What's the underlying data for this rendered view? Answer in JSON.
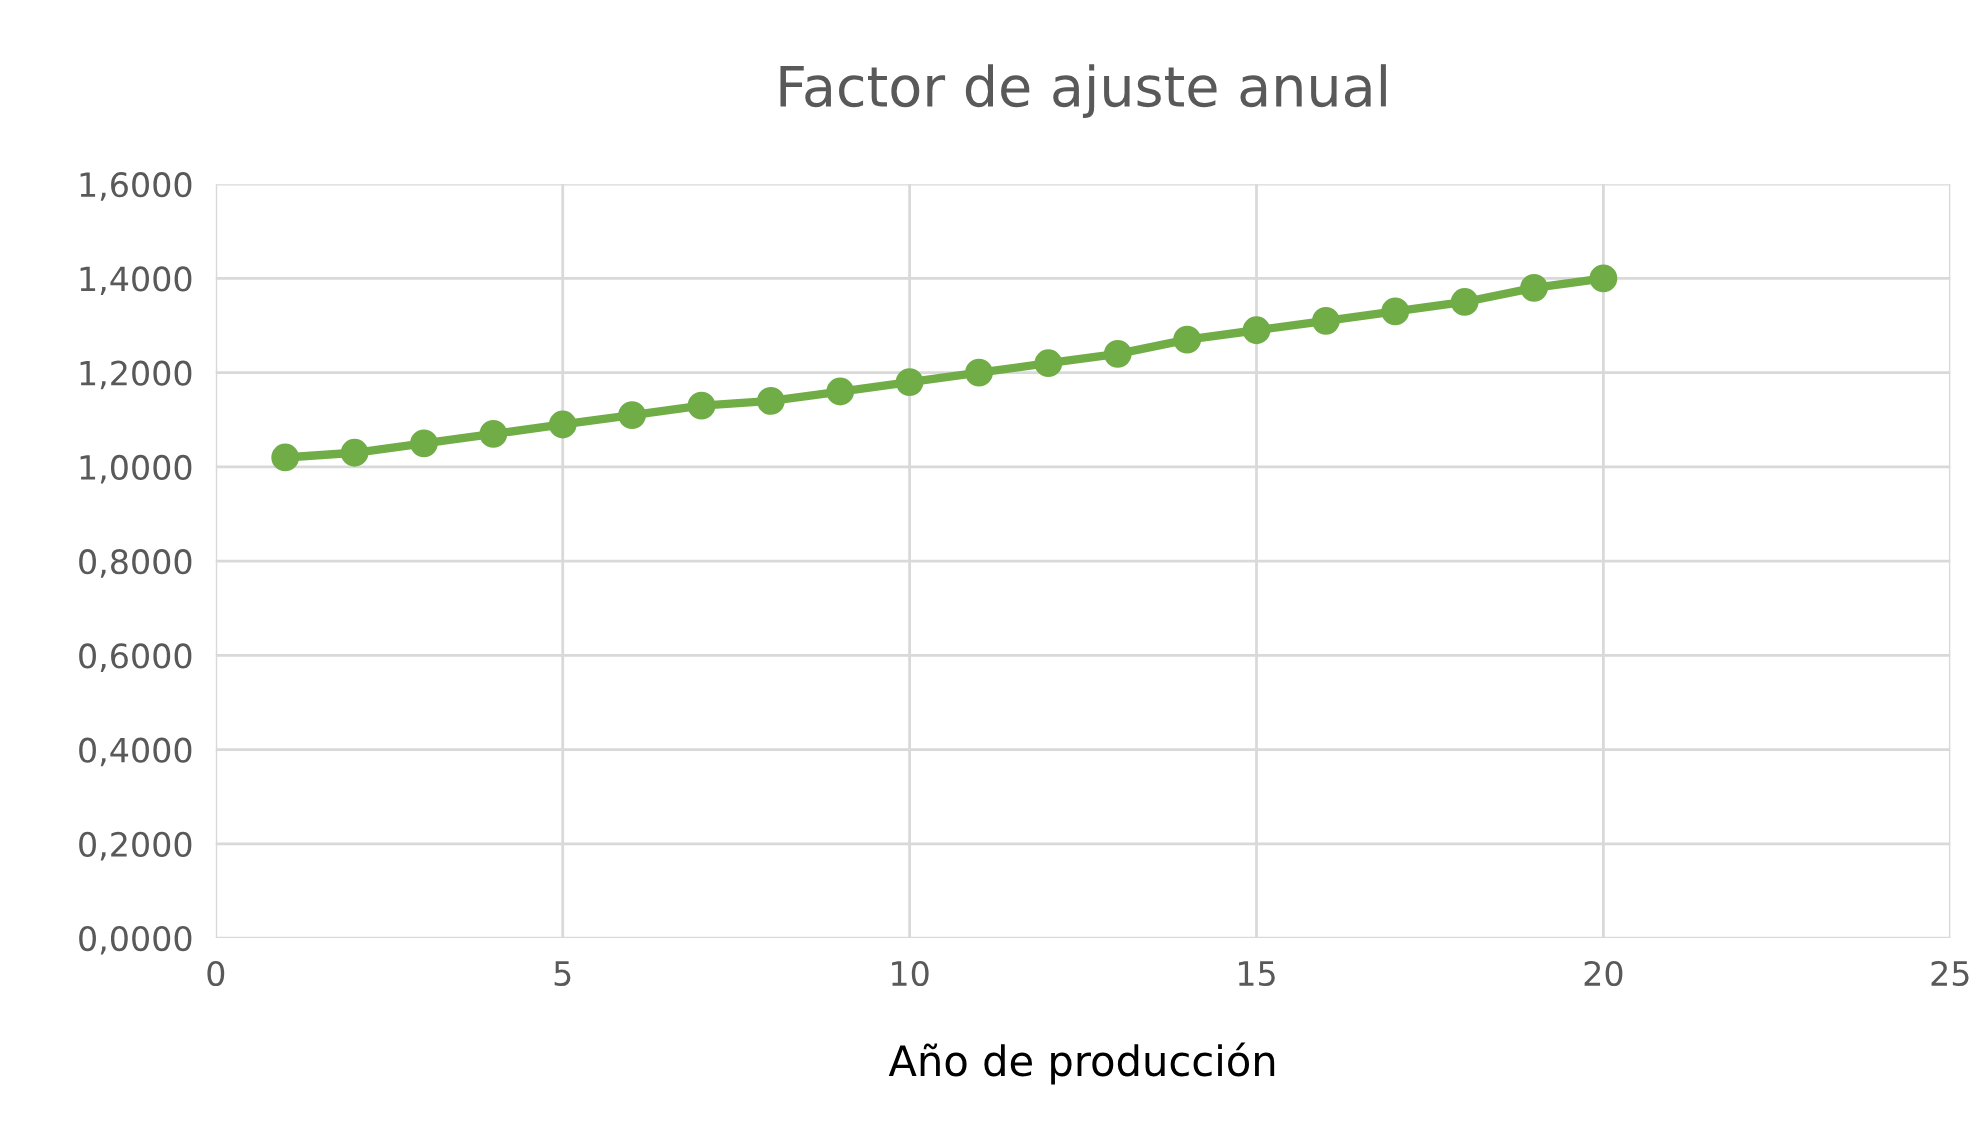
{
  "chart_data": {
    "type": "line",
    "title": "Factor de ajuste anual",
    "xlabel": "Año de producción",
    "x": [
      1,
      2,
      3,
      4,
      5,
      6,
      7,
      8,
      9,
      10,
      11,
      12,
      13,
      14,
      15,
      16,
      17,
      18,
      19,
      20
    ],
    "series": [
      {
        "color": "#70ad47",
        "values": [
          1.02,
          1.03,
          1.05,
          1.07,
          1.09,
          1.11,
          1.13,
          1.14,
          1.16,
          1.18,
          1.2,
          1.22,
          1.24,
          1.27,
          1.29,
          1.31,
          1.33,
          1.35,
          1.38,
          1.4
        ]
      }
    ],
    "xlim": [
      0,
      25
    ],
    "xticks": [
      0,
      5,
      10,
      15,
      20,
      25
    ],
    "ylim": [
      0,
      1.6
    ],
    "yticks": [
      {
        "value": 0,
        "label": "0,0000"
      },
      {
        "value": 0.2,
        "label": "0,2000"
      },
      {
        "value": 0.4,
        "label": "0,4000"
      },
      {
        "value": 0.6,
        "label": "0,6000"
      },
      {
        "value": 0.8,
        "label": "0,8000"
      },
      {
        "value": 1.0,
        "label": "1,0000"
      },
      {
        "value": 1.2,
        "label": "1,2000"
      },
      {
        "value": 1.4,
        "label": "1,4000"
      },
      {
        "value": 1.6,
        "label": "1,6000"
      }
    ],
    "grid": true,
    "marker": "circle",
    "line_style": "solid"
  }
}
